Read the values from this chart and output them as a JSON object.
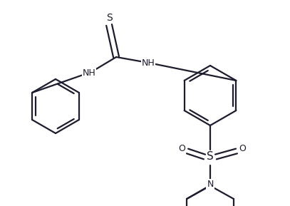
{
  "bg_color": "#ffffff",
  "line_color": "#1c1c2e",
  "line_width": 1.6,
  "font_size": 9,
  "figsize": [
    4.07,
    2.89
  ],
  "dpi": 100,
  "xlim": [
    0,
    407
  ],
  "ylim": [
    0,
    289
  ]
}
